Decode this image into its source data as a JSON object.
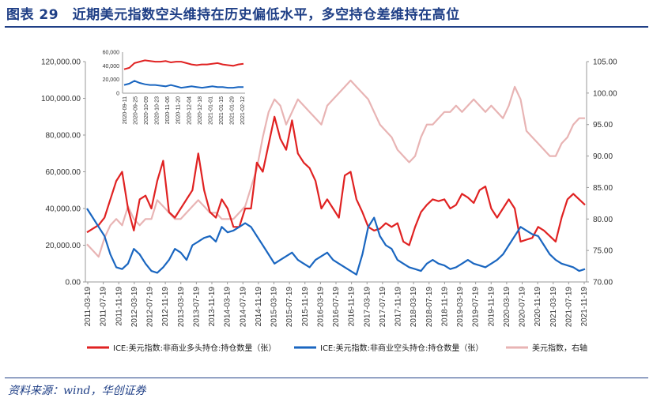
{
  "title": "图表 29　近期美元指数空头维持在历史偏低水平，多空持仓差维持在高位",
  "source": "资料来源：wind，华创证券",
  "colors": {
    "long": "#e02222",
    "short": "#1a66c0",
    "dxy": "#e8b4b4",
    "accent": "#1f3f86"
  },
  "chart_data": {
    "type": "line",
    "title": "近期美元指数空头维持在历史偏低水平，多空持仓差维持在高位",
    "y_left": {
      "ticks": [
        "0.00",
        "20,000.00",
        "40,000.00",
        "60,000.00",
        "80,000.00",
        "100,000.00",
        "120,000.00"
      ],
      "ylim": [
        0,
        120000
      ]
    },
    "y_right": {
      "ticks": [
        "70.00",
        "75.00",
        "80.00",
        "85.00",
        "90.00",
        "95.00",
        "100.00",
        "105.00"
      ],
      "ylim": [
        70,
        105
      ]
    },
    "x_ticks": [
      "2011-03-19",
      "2011-07-19",
      "2011-11-19",
      "2012-03-19",
      "2012-07-19",
      "2012-11-19",
      "2013-03-19",
      "2013-07-19",
      "2013-11-19",
      "2014-03-19",
      "2014-07-19",
      "2014-11-19",
      "2015-03-19",
      "2015-07-19",
      "2015-11-19",
      "2016-03-19",
      "2016-07-19",
      "2016-11-19",
      "2017-03-19",
      "2017-07-19",
      "2017-11-19",
      "2018-03-19",
      "2018-07-19",
      "2018-11-19",
      "2019-03-19",
      "2019-07-19",
      "2019-11-19",
      "2020-03-19",
      "2020-07-19",
      "2020-11-19",
      "2021-03-19",
      "2021-07-19",
      "2021-11-19"
    ],
    "series": [
      {
        "name": "ICE:美元指数:非商业多头持仓:持仓数量（张）",
        "axis": "left",
        "color": "#e02222",
        "values": [
          27000,
          29000,
          31000,
          35000,
          45000,
          55000,
          60000,
          40000,
          28000,
          45000,
          47000,
          40000,
          55000,
          66000,
          38000,
          35000,
          40000,
          45000,
          50000,
          70000,
          50000,
          38000,
          35000,
          45000,
          40000,
          30000,
          30000,
          40000,
          40000,
          65000,
          60000,
          75000,
          90000,
          78000,
          72000,
          88000,
          70000,
          65000,
          62000,
          55000,
          40000,
          45000,
          40000,
          35000,
          58000,
          60000,
          45000,
          38000,
          30000,
          28000,
          29000,
          32000,
          30000,
          32000,
          22000,
          20000,
          30000,
          38000,
          42000,
          45000,
          44000,
          45000,
          40000,
          42000,
          48000,
          46000,
          43000,
          50000,
          52000,
          40000,
          35000,
          40000,
          45000,
          40000,
          22000,
          23000,
          24000,
          30000,
          28000,
          25000,
          22000,
          35000,
          45000,
          48000,
          45000,
          42000
        ]
      },
      {
        "name": "ICE:美元指数:非商业空头持仓:持仓数量（张）",
        "axis": "left",
        "color": "#1a66c0",
        "values": [
          40000,
          35000,
          30000,
          25000,
          15000,
          8000,
          7000,
          10000,
          18000,
          15000,
          10000,
          6000,
          5000,
          8000,
          12000,
          18000,
          16000,
          12000,
          20000,
          22000,
          24000,
          25000,
          22000,
          30000,
          27000,
          28000,
          30000,
          32000,
          30000,
          25000,
          20000,
          15000,
          10000,
          12000,
          14000,
          16000,
          12000,
          10000,
          8000,
          12000,
          14000,
          16000,
          12000,
          10000,
          8000,
          6000,
          4000,
          15000,
          30000,
          35000,
          25000,
          20000,
          18000,
          12000,
          10000,
          8000,
          7000,
          6000,
          10000,
          12000,
          10000,
          9000,
          7000,
          8000,
          10000,
          12000,
          10000,
          9000,
          8000,
          10000,
          12000,
          15000,
          20000,
          25000,
          30000,
          28000,
          26000,
          25000,
          20000,
          15000,
          12000,
          10000,
          9000,
          8000,
          6000,
          7000
        ]
      },
      {
        "name": "美元指数，右轴",
        "axis": "right",
        "color": "#e8b4b4",
        "values": [
          76,
          75,
          74,
          77,
          79,
          80,
          79,
          82,
          80,
          79,
          80,
          80,
          83,
          82,
          81,
          80,
          80,
          81,
          82,
          83,
          82,
          81,
          81,
          80,
          80,
          80,
          81,
          82,
          85,
          88,
          93,
          97,
          99,
          98,
          95,
          97,
          99,
          98,
          97,
          96,
          95,
          98,
          99,
          100,
          101,
          102,
          101,
          100,
          99,
          97,
          95,
          94,
          93,
          91,
          90,
          89,
          90,
          93,
          95,
          95,
          96,
          97,
          97,
          98,
          97,
          98,
          99,
          98,
          97,
          98,
          97,
          96,
          98,
          101,
          99,
          94,
          93,
          92,
          91,
          90,
          90,
          92,
          93,
          95,
          96,
          96
        ]
      }
    ],
    "legend": [
      "ICE:美元指数:非商业多头持仓:持仓数量（张）",
      "ICE:美元指数:非商业空头持仓:持仓数量（张）",
      "美元指数，右轴"
    ],
    "legend_position": "bottom",
    "inset": {
      "type": "line",
      "y_ticks": [
        "0",
        "20,000",
        "40,000",
        "60,000"
      ],
      "ylim": [
        0,
        60000
      ],
      "x_ticks": [
        "2020-09-11",
        "2020-09-25",
        "2020-10-09",
        "2020-10-23",
        "2020-11-06",
        "2020-11-20",
        "2020-12-04",
        "2020-12-18",
        "2021-01-01",
        "2021-01-15",
        "2021-01-29",
        "2021-02-12"
      ],
      "series": [
        {
          "name": "多头",
          "color": "#e02222",
          "values": [
            35000,
            37000,
            44000,
            46000,
            48000,
            47000,
            46000,
            46000,
            47000,
            45000,
            46000,
            46000,
            44000,
            42000,
            41000,
            42000,
            42000,
            43000,
            44000,
            42000,
            41000,
            40000,
            42000,
            43000
          ]
        },
        {
          "name": "空头",
          "color": "#1a66c0",
          "values": [
            12000,
            14000,
            18000,
            15000,
            13000,
            12000,
            12000,
            11000,
            10000,
            12000,
            10000,
            8000,
            9000,
            10000,
            9000,
            8000,
            9000,
            10000,
            9000,
            9000,
            8000,
            8000,
            9000,
            9000
          ]
        }
      ]
    }
  }
}
